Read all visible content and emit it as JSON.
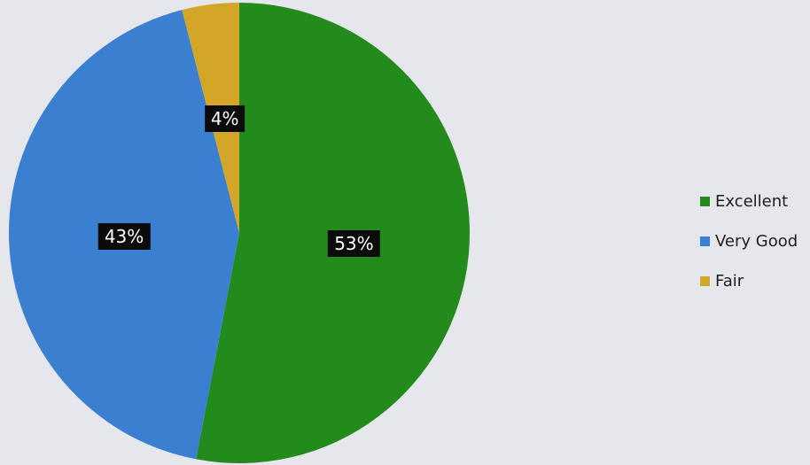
{
  "chart_data": {
    "type": "pie",
    "slices": [
      {
        "name": "Excellent",
        "value": 53,
        "label": "53%",
        "color": "#238b1c"
      },
      {
        "name": "Very Good",
        "value": 43,
        "label": "43%",
        "color": "#3a7fd0"
      },
      {
        "name": "Fair",
        "value": 4,
        "label": "4%",
        "color": "#d3a628"
      }
    ],
    "start_angle_deg": 0,
    "direction": "clockwise",
    "legend_position": "right"
  }
}
